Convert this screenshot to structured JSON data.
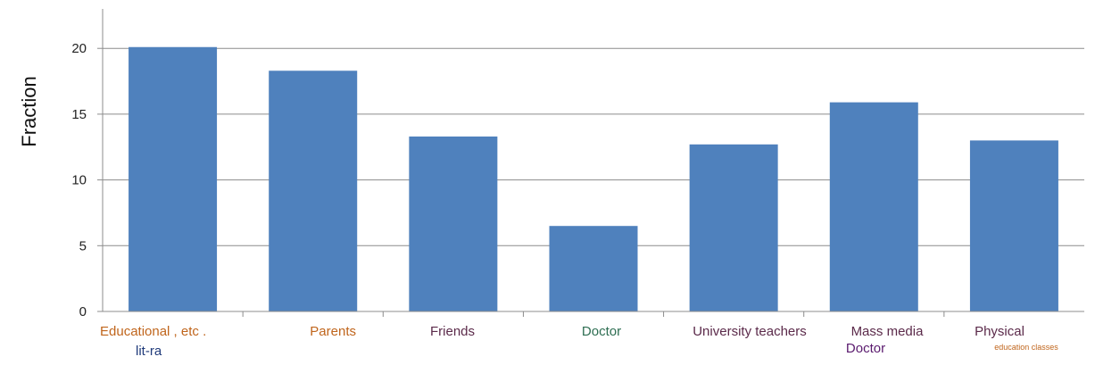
{
  "chart_data": {
    "type": "bar",
    "ylabel": "Fraction",
    "xlabel": "",
    "title": "",
    "ylim": [
      0,
      23
    ],
    "yticks": [
      0,
      5,
      10,
      15,
      20
    ],
    "grid": true,
    "bar_color": "#4f81bd",
    "categories": [
      "Educational , etc .",
      "Parents",
      "Friends",
      "Doctor",
      "University teachers",
      "Mass media",
      "Physical"
    ],
    "values": [
      20.1,
      18.3,
      13.3,
      6.5,
      12.7,
      15.9,
      13.0
    ],
    "category_label_colors": [
      "#c0651c",
      "#c0651c",
      "#5b2a4a",
      "#2e6e52",
      "#5b2a4a",
      "#5b2a4a",
      "#5b2a4a"
    ],
    "extra_labels": [
      {
        "text": "lit-ra",
        "color": "#1f3a7a",
        "under_category": 0
      },
      {
        "text": "Doctor",
        "color": "#5a1a6e",
        "under_category": 5
      },
      {
        "text": "education classes",
        "color": "#c0651c",
        "under_category": 6
      }
    ]
  }
}
